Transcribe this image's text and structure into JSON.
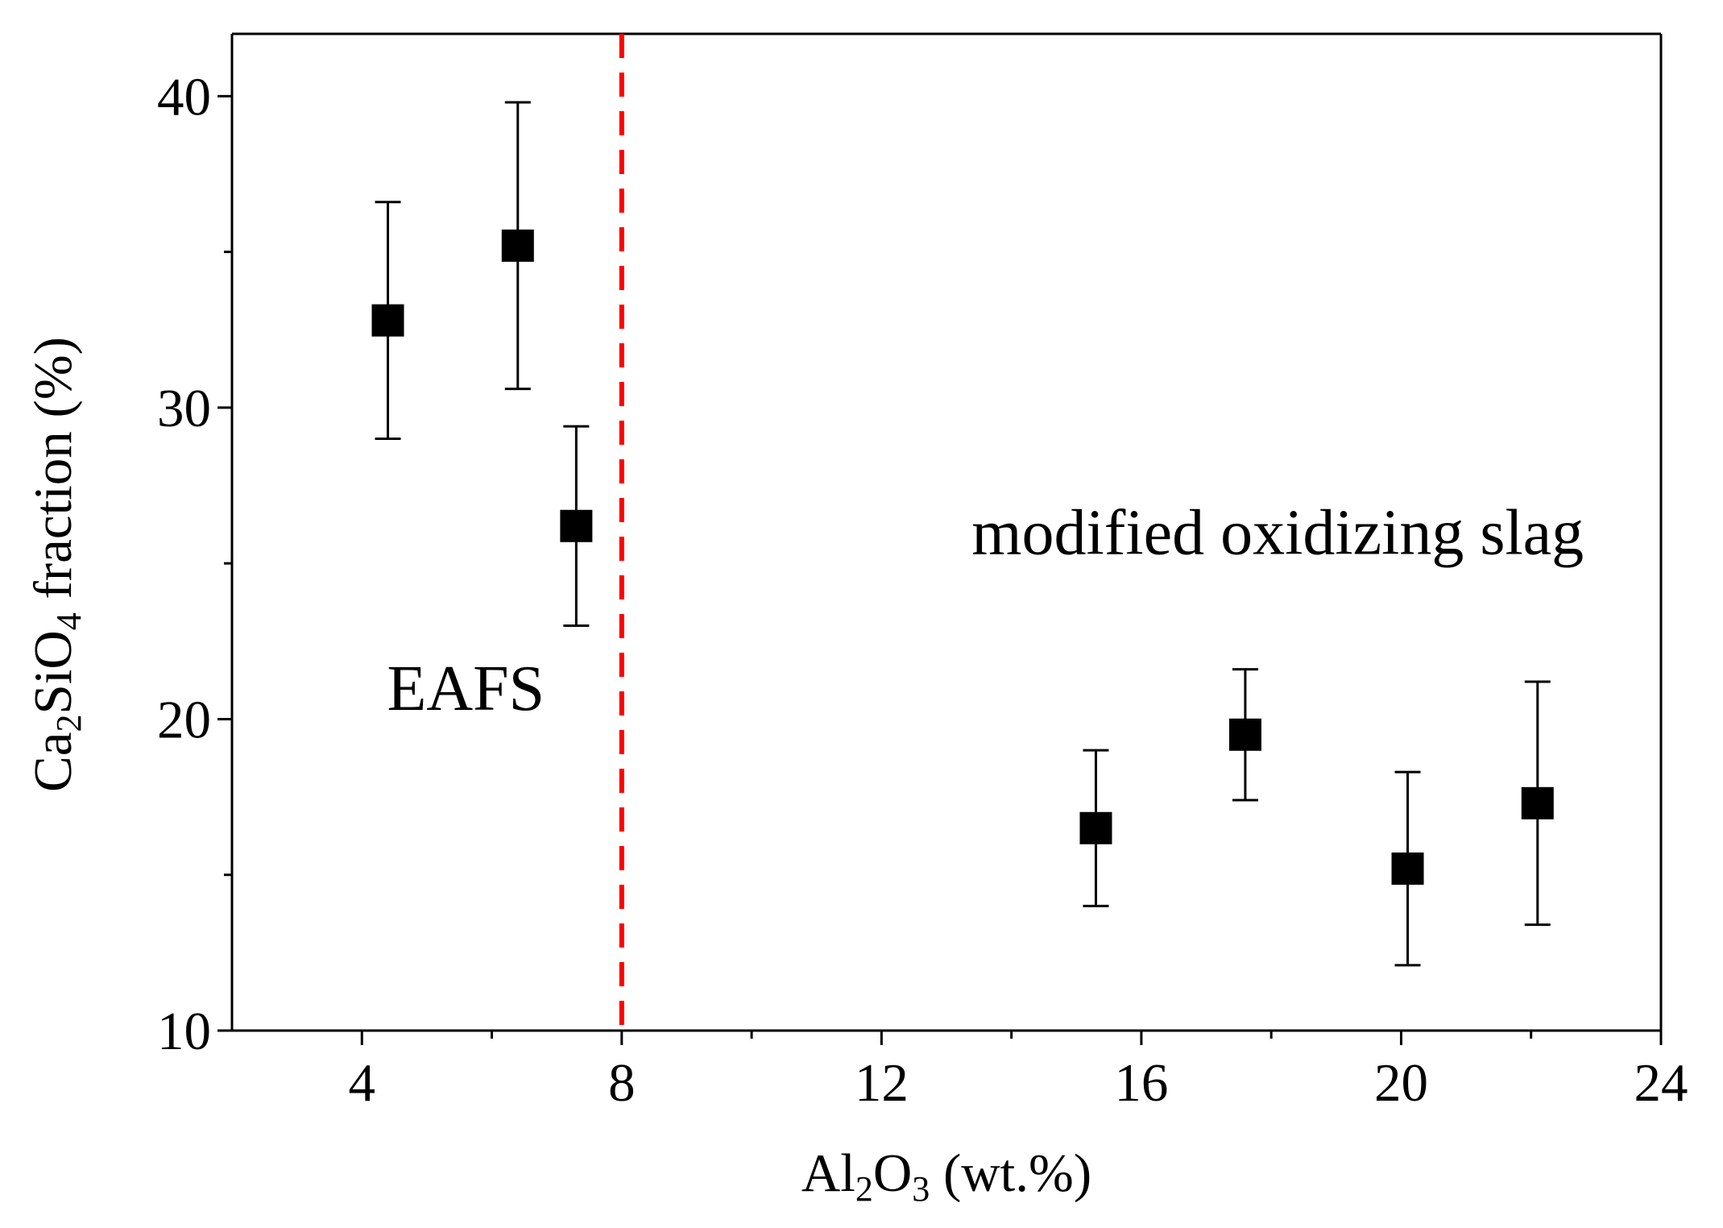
{
  "chart_data": {
    "type": "scatter",
    "title": "",
    "xlabel": {
      "prefix": "Al",
      "sub1": "2",
      "mid": "O",
      "sub2": "3",
      "suffix": " (wt.%)"
    },
    "ylabel": {
      "prefix": "Ca",
      "sub1": "2",
      "mid": "SiO",
      "sub2": "4",
      "suffix": " fraction (%)"
    },
    "xlim": [
      2,
      24
    ],
    "ylim": [
      10,
      42
    ],
    "xticks": [
      4,
      8,
      12,
      16,
      20,
      24
    ],
    "xtick_labels": [
      "4",
      "8",
      "12",
      "16",
      "20",
      "24"
    ],
    "xminor": [
      6,
      10,
      14,
      18,
      22
    ],
    "yticks": [
      10,
      20,
      30,
      40
    ],
    "ytick_labels": [
      "10",
      "20",
      "30",
      "40"
    ],
    "yminor": [
      15,
      25,
      35
    ],
    "grid": false,
    "divider": {
      "x": 8,
      "color": "#ff0000",
      "style": "dashed"
    },
    "series": [
      {
        "name": "EAFS",
        "points": [
          {
            "x": 4.4,
            "y": 32.8,
            "err_low": 29.0,
            "err_high": 36.6
          },
          {
            "x": 6.4,
            "y": 35.2,
            "err_low": 30.6,
            "err_high": 39.8
          },
          {
            "x": 7.3,
            "y": 26.2,
            "err_low": 23.0,
            "err_high": 29.4
          }
        ]
      },
      {
        "name": "modified oxidizing slag",
        "points": [
          {
            "x": 15.3,
            "y": 16.5,
            "err_low": 14.0,
            "err_high": 19.0
          },
          {
            "x": 17.6,
            "y": 19.5,
            "err_low": 17.4,
            "err_high": 21.6
          },
          {
            "x": 20.1,
            "y": 15.2,
            "err_low": 12.1,
            "err_high": 18.3
          },
          {
            "x": 22.1,
            "y": 17.3,
            "err_low": 13.4,
            "err_high": 21.2
          }
        ]
      }
    ],
    "annotations": [
      {
        "text": "EAFS",
        "x": 5.6,
        "y": 20.3,
        "anchor": "middle"
      },
      {
        "text": "modified oxidizing slag",
        "x": 18.1,
        "y": 25.3,
        "anchor": "middle"
      }
    ],
    "marker_color": "#000000"
  }
}
